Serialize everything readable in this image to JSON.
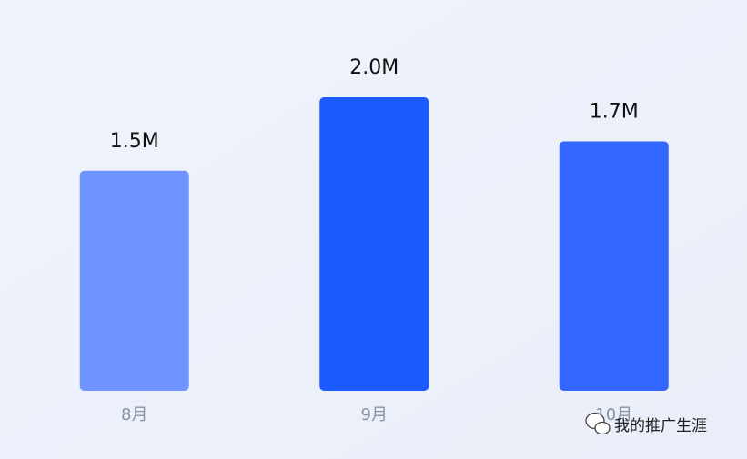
{
  "chart_data": {
    "type": "bar",
    "categories": [
      "8月",
      "9月",
      "10月"
    ],
    "values": [
      1500000,
      2000000,
      1700000
    ],
    "value_labels": [
      "1.5M",
      "2.0M",
      "1.7M"
    ],
    "colors": [
      "#7094ff",
      "#1a5aff",
      "#3366ff"
    ]
  },
  "watermark": "我的推广生涯"
}
